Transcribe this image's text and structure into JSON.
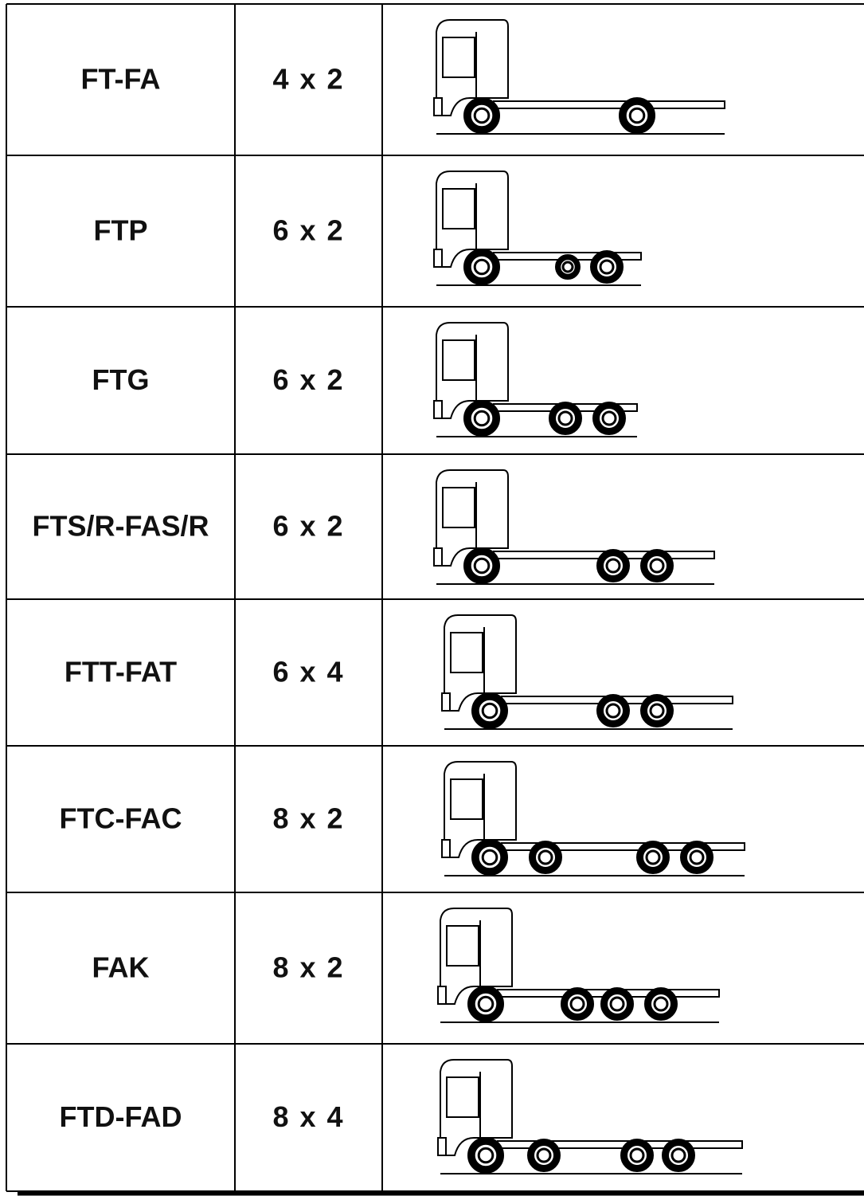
{
  "table": {
    "rows": [
      [
        "FT-FA",
        "4 x 2"
      ],
      [
        "FTP",
        "6 x 2"
      ],
      [
        "FTG",
        "6 x 2"
      ],
      [
        "FTS/R-FAS/R",
        "6 x 2"
      ],
      [
        "FTT-FAT",
        "6 x 4"
      ],
      [
        "FTC-FAC",
        "8 x 2"
      ],
      [
        "FAK",
        "8 x 2"
      ],
      [
        "FTD-FAD",
        "8 x 4"
      ]
    ]
  }
}
